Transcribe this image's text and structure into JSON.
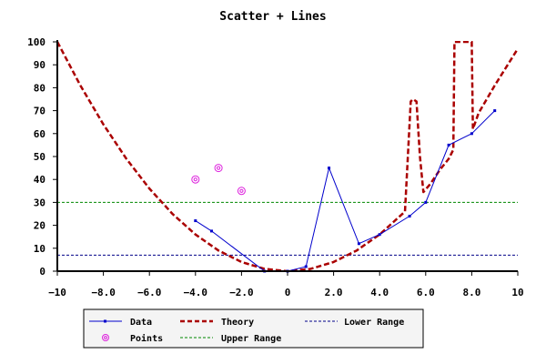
{
  "chart_data": {
    "type": "line",
    "title": "Scatter + Lines",
    "xlabel": "",
    "ylabel": "",
    "xlim": [
      -10,
      10
    ],
    "ylim": [
      0,
      100
    ],
    "x_ticks": [
      "−10",
      "−8.0",
      "−6.0",
      "−4.0",
      "−2.0",
      "0",
      "2.0",
      "4.0",
      "6.0",
      "8.0",
      "10"
    ],
    "y_ticks": [
      "0",
      "10",
      "20",
      "30",
      "40",
      "50",
      "60",
      "70",
      "80",
      "90",
      "100"
    ],
    "x_tick_values": [
      -10,
      -8,
      -6,
      -4,
      -2,
      0,
      2,
      4,
      6,
      8,
      10
    ],
    "y_tick_values": [
      0,
      10,
      20,
      30,
      40,
      50,
      60,
      70,
      80,
      90,
      100
    ],
    "grid": false,
    "legend_position": "bottom",
    "series": [
      {
        "name": "Data",
        "kind": "line-markers",
        "color": "#0000cc",
        "x": [
          -4,
          -3.3,
          -1,
          0,
          0.8,
          1.8,
          3.1,
          4,
          5.3,
          6,
          7,
          8,
          9
        ],
        "y": [
          22,
          17.5,
          0,
          0,
          2,
          45,
          12,
          16,
          24,
          30,
          55,
          60,
          70
        ]
      },
      {
        "name": "Points",
        "kind": "scatter",
        "color": "#dd22dd",
        "x": [
          -4,
          -3,
          -2
        ],
        "y": [
          40,
          45,
          35
        ]
      },
      {
        "name": "Theory",
        "kind": "dashed-line",
        "color": "#aa0000",
        "x": [
          -10,
          -9,
          -8,
          -7,
          -6,
          -5,
          -4,
          -3,
          -2,
          -1,
          0,
          1,
          2,
          3,
          4,
          5.1,
          5.35,
          5.45,
          5.6,
          5.75,
          5.9,
          6.2,
          6.6,
          7.0,
          7.2,
          7.25,
          7.3,
          7.9,
          8.0,
          8.05,
          8.3,
          9,
          10
        ],
        "y": [
          100,
          81,
          64,
          49,
          36,
          25,
          16,
          9,
          4,
          1,
          0,
          1,
          4,
          9,
          16,
          26,
          74,
          75,
          74,
          50,
          34.5,
          38,
          44,
          49,
          53,
          100,
          100,
          100,
          100,
          62,
          69,
          81,
          97
        ]
      },
      {
        "name": "Upper Range",
        "kind": "hline",
        "color": "#008800",
        "y": 30
      },
      {
        "name": "Lower Range",
        "kind": "hline",
        "color": "#000088",
        "y": 7
      }
    ]
  }
}
